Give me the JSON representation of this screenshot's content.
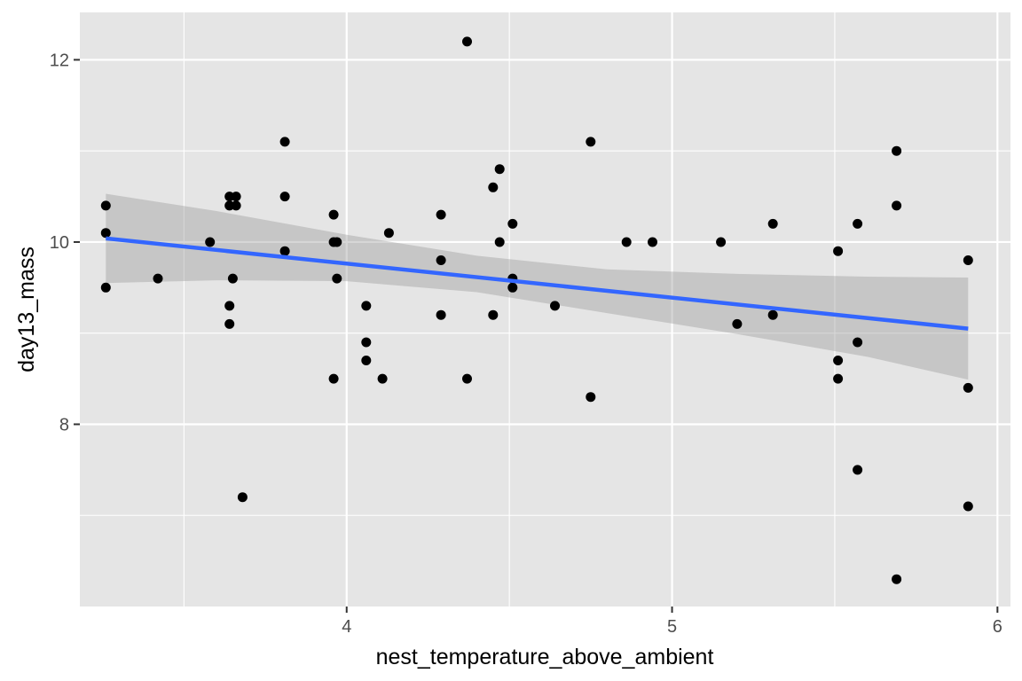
{
  "chart_data": {
    "type": "scatter",
    "title": "",
    "xlabel": "nest_temperature_above_ambient",
    "ylabel": "day13_mass",
    "xlim": [
      3.18,
      6.04
    ],
    "ylim": [
      6.0,
      12.52
    ],
    "x_ticks": [
      4,
      5,
      6
    ],
    "x_tick_labels": [
      "4",
      "5",
      "6"
    ],
    "x_minor_ticks": [
      3.5,
      4.5,
      5.5
    ],
    "y_ticks": [
      8,
      10,
      12
    ],
    "y_tick_labels": [
      "8",
      "10",
      "12"
    ],
    "y_minor_ticks": [
      7,
      9,
      11
    ],
    "grid": true,
    "legend": "none",
    "colors": {
      "panel": "#e5e5e5",
      "grid": "#ffffff",
      "points": "#000000",
      "trend_line": "#3366ff",
      "confidence_band": "#999999"
    },
    "points": [
      {
        "x": 3.26,
        "y": 10.4
      },
      {
        "x": 3.26,
        "y": 10.1
      },
      {
        "x": 3.26,
        "y": 9.5
      },
      {
        "x": 3.42,
        "y": 9.6
      },
      {
        "x": 3.58,
        "y": 10.0
      },
      {
        "x": 3.64,
        "y": 10.5
      },
      {
        "x": 3.66,
        "y": 10.5
      },
      {
        "x": 3.64,
        "y": 10.4
      },
      {
        "x": 3.66,
        "y": 10.4
      },
      {
        "x": 3.65,
        "y": 9.6
      },
      {
        "x": 3.64,
        "y": 9.3
      },
      {
        "x": 3.64,
        "y": 9.1
      },
      {
        "x": 3.68,
        "y": 7.2
      },
      {
        "x": 3.81,
        "y": 11.1
      },
      {
        "x": 3.81,
        "y": 10.5
      },
      {
        "x": 3.81,
        "y": 9.9
      },
      {
        "x": 3.96,
        "y": 10.3
      },
      {
        "x": 3.96,
        "y": 10.0
      },
      {
        "x": 3.97,
        "y": 10.0
      },
      {
        "x": 3.97,
        "y": 9.6
      },
      {
        "x": 3.96,
        "y": 8.5
      },
      {
        "x": 4.06,
        "y": 9.3
      },
      {
        "x": 4.06,
        "y": 8.9
      },
      {
        "x": 4.06,
        "y": 8.7
      },
      {
        "x": 4.11,
        "y": 8.5
      },
      {
        "x": 4.13,
        "y": 10.1
      },
      {
        "x": 4.29,
        "y": 10.3
      },
      {
        "x": 4.29,
        "y": 9.8
      },
      {
        "x": 4.29,
        "y": 9.2
      },
      {
        "x": 4.37,
        "y": 12.2
      },
      {
        "x": 4.37,
        "y": 8.5
      },
      {
        "x": 4.45,
        "y": 10.6
      },
      {
        "x": 4.47,
        "y": 10.8
      },
      {
        "x": 4.47,
        "y": 10.0
      },
      {
        "x": 4.45,
        "y": 9.2
      },
      {
        "x": 4.51,
        "y": 10.2
      },
      {
        "x": 4.51,
        "y": 9.6
      },
      {
        "x": 4.51,
        "y": 9.5
      },
      {
        "x": 4.64,
        "y": 9.3
      },
      {
        "x": 4.75,
        "y": 11.1
      },
      {
        "x": 4.75,
        "y": 8.3
      },
      {
        "x": 4.86,
        "y": 10.0
      },
      {
        "x": 4.94,
        "y": 10.0
      },
      {
        "x": 5.15,
        "y": 10.0
      },
      {
        "x": 5.2,
        "y": 9.1
      },
      {
        "x": 5.31,
        "y": 10.2
      },
      {
        "x": 5.31,
        "y": 9.2
      },
      {
        "x": 5.51,
        "y": 9.9
      },
      {
        "x": 5.51,
        "y": 8.7
      },
      {
        "x": 5.51,
        "y": 8.5
      },
      {
        "x": 5.57,
        "y": 10.2
      },
      {
        "x": 5.57,
        "y": 8.9
      },
      {
        "x": 5.57,
        "y": 7.5
      },
      {
        "x": 5.69,
        "y": 11.0
      },
      {
        "x": 5.69,
        "y": 10.4
      },
      {
        "x": 5.69,
        "y": 6.3
      },
      {
        "x": 5.91,
        "y": 9.8
      },
      {
        "x": 5.91,
        "y": 8.4
      },
      {
        "x": 5.91,
        "y": 7.1
      }
    ],
    "trend_line": [
      {
        "x": 3.26,
        "y": 10.04
      },
      {
        "x": 5.91,
        "y": 9.05
      }
    ],
    "confidence_band": [
      {
        "x": 3.26,
        "lower": 9.55,
        "upper": 10.53
      },
      {
        "x": 3.6,
        "lower": 9.58,
        "upper": 10.34
      },
      {
        "x": 4.0,
        "lower": 9.57,
        "upper": 10.08
      },
      {
        "x": 4.4,
        "lower": 9.45,
        "upper": 9.85
      },
      {
        "x": 4.8,
        "lower": 9.22,
        "upper": 9.7
      },
      {
        "x": 5.2,
        "lower": 8.99,
        "upper": 9.65
      },
      {
        "x": 5.6,
        "lower": 8.74,
        "upper": 9.62
      },
      {
        "x": 5.91,
        "lower": 8.49,
        "upper": 9.61
      }
    ]
  }
}
